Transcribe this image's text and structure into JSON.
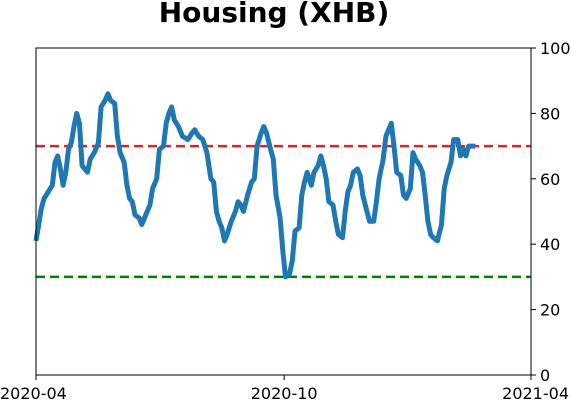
{
  "chart_data": {
    "type": "line",
    "title": "Housing (XHB)",
    "xlabel": "",
    "ylabel": "",
    "x_range": [
      "2020-04-01",
      "2021-04-01"
    ],
    "x_ticks": [
      {
        "date": "2020-04-01",
        "label": "2020-04"
      },
      {
        "date": "2020-10-01",
        "label": "2020-10"
      },
      {
        "date": "2021-04-01",
        "label": "2021-04"
      }
    ],
    "ylim": [
      0,
      100
    ],
    "y_ticks": [
      0,
      20,
      40,
      60,
      80,
      100
    ],
    "y_axis_side": "right",
    "grid": false,
    "legend": "none",
    "reference_lines": [
      {
        "y": 70,
        "color": "#d62728",
        "style": "dashed"
      },
      {
        "y": 30,
        "color": "#008000",
        "style": "dashed"
      }
    ],
    "series": [
      {
        "color": "#1f77b4",
        "points": [
          [
            "2020-04-01",
            41
          ],
          [
            "2020-04-03",
            46
          ],
          [
            "2020-04-05",
            51
          ],
          [
            "2020-04-07",
            54
          ],
          [
            "2020-04-10",
            56
          ],
          [
            "2020-04-13",
            58
          ],
          [
            "2020-04-15",
            65
          ],
          [
            "2020-04-17",
            67
          ],
          [
            "2020-04-19",
            63
          ],
          [
            "2020-04-21",
            58
          ],
          [
            "2020-04-23",
            62
          ],
          [
            "2020-04-25",
            69
          ],
          [
            "2020-04-27",
            71
          ],
          [
            "2020-04-29",
            76
          ],
          [
            "2020-05-01",
            80
          ],
          [
            "2020-05-03",
            77
          ],
          [
            "2020-05-05",
            64
          ],
          [
            "2020-05-07",
            63
          ],
          [
            "2020-05-09",
            62
          ],
          [
            "2020-05-11",
            66
          ],
          [
            "2020-05-14",
            68
          ],
          [
            "2020-05-17",
            71
          ],
          [
            "2020-05-19",
            82
          ],
          [
            "2020-05-22",
            84
          ],
          [
            "2020-05-24",
            86
          ],
          [
            "2020-05-26",
            84
          ],
          [
            "2020-05-29",
            83
          ],
          [
            "2020-05-31",
            73
          ],
          [
            "2020-06-02",
            68
          ],
          [
            "2020-06-05",
            65
          ],
          [
            "2020-06-07",
            58
          ],
          [
            "2020-06-09",
            54
          ],
          [
            "2020-06-11",
            53
          ],
          [
            "2020-06-13",
            49
          ],
          [
            "2020-06-16",
            48
          ],
          [
            "2020-06-18",
            46
          ],
          [
            "2020-06-20",
            48
          ],
          [
            "2020-06-22",
            50
          ],
          [
            "2020-06-24",
            52
          ],
          [
            "2020-06-26",
            57
          ],
          [
            "2020-06-29",
            60
          ],
          [
            "2020-07-01",
            69
          ],
          [
            "2020-07-04",
            70
          ],
          [
            "2020-07-06",
            77
          ],
          [
            "2020-07-08",
            80
          ],
          [
            "2020-07-10",
            82
          ],
          [
            "2020-07-12",
            78
          ],
          [
            "2020-07-15",
            76
          ],
          [
            "2020-07-18",
            73
          ],
          [
            "2020-07-22",
            72
          ],
          [
            "2020-07-25",
            74
          ],
          [
            "2020-07-27",
            75
          ],
          [
            "2020-07-30",
            73
          ],
          [
            "2020-08-02",
            72
          ],
          [
            "2020-08-05",
            68
          ],
          [
            "2020-08-08",
            60
          ],
          [
            "2020-08-10",
            59
          ],
          [
            "2020-08-12",
            50
          ],
          [
            "2020-08-14",
            47
          ],
          [
            "2020-08-16",
            45
          ],
          [
            "2020-08-18",
            41
          ],
          [
            "2020-08-20",
            43
          ],
          [
            "2020-08-23",
            47
          ],
          [
            "2020-08-26",
            50
          ],
          [
            "2020-08-28",
            53
          ],
          [
            "2020-08-30",
            52
          ],
          [
            "2020-09-01",
            50
          ],
          [
            "2020-09-04",
            55
          ],
          [
            "2020-09-07",
            59
          ],
          [
            "2020-09-09",
            60
          ],
          [
            "2020-09-11",
            70
          ],
          [
            "2020-09-14",
            74
          ],
          [
            "2020-09-16",
            76
          ],
          [
            "2020-09-18",
            74
          ],
          [
            "2020-09-21",
            69
          ],
          [
            "2020-09-23",
            66
          ],
          [
            "2020-09-25",
            55
          ],
          [
            "2020-09-28",
            48
          ],
          [
            "2020-09-30",
            38
          ],
          [
            "2020-10-02",
            30
          ],
          [
            "2020-10-05",
            31
          ],
          [
            "2020-10-07",
            35
          ],
          [
            "2020-10-09",
            44
          ],
          [
            "2020-10-12",
            45
          ],
          [
            "2020-10-14",
            55
          ],
          [
            "2020-10-16",
            59
          ],
          [
            "2020-10-18",
            62
          ],
          [
            "2020-10-21",
            58
          ],
          [
            "2020-10-23",
            62
          ],
          [
            "2020-10-26",
            64
          ],
          [
            "2020-10-28",
            67
          ],
          [
            "2020-10-30",
            64
          ],
          [
            "2020-11-01",
            60
          ],
          [
            "2020-11-03",
            53
          ],
          [
            "2020-11-06",
            52
          ],
          [
            "2020-11-08",
            47
          ],
          [
            "2020-11-10",
            43
          ],
          [
            "2020-11-13",
            42
          ],
          [
            "2020-11-15",
            50
          ],
          [
            "2020-11-17",
            56
          ],
          [
            "2020-11-19",
            58
          ],
          [
            "2020-11-21",
            62
          ],
          [
            "2020-11-24",
            63
          ],
          [
            "2020-11-26",
            61
          ],
          [
            "2020-11-28",
            55
          ],
          [
            "2020-12-01",
            50
          ],
          [
            "2020-12-03",
            47
          ],
          [
            "2020-12-06",
            47
          ],
          [
            "2020-12-08",
            53
          ],
          [
            "2020-12-10",
            60
          ],
          [
            "2020-12-13",
            66
          ],
          [
            "2020-12-15",
            73
          ],
          [
            "2020-12-17",
            75
          ],
          [
            "2020-12-19",
            77
          ],
          [
            "2020-12-21",
            70
          ],
          [
            "2020-12-23",
            62
          ],
          [
            "2020-12-26",
            61
          ],
          [
            "2020-12-28",
            55
          ],
          [
            "2020-12-30",
            54
          ],
          [
            "2021-01-02",
            57
          ],
          [
            "2021-01-04",
            68
          ],
          [
            "2021-01-06",
            66
          ],
          [
            "2021-01-09",
            64
          ],
          [
            "2021-01-11",
            62
          ],
          [
            "2021-01-13",
            55
          ],
          [
            "2021-01-15",
            47
          ],
          [
            "2021-01-17",
            43
          ],
          [
            "2021-01-19",
            42
          ],
          [
            "2021-01-22",
            41
          ],
          [
            "2021-01-25",
            46
          ],
          [
            "2021-01-27",
            57
          ],
          [
            "2021-01-29",
            61
          ],
          [
            "2021-02-01",
            65
          ],
          [
            "2021-02-03",
            72
          ],
          [
            "2021-02-06",
            72
          ],
          [
            "2021-02-08",
            67
          ],
          [
            "2021-02-10",
            69
          ],
          [
            "2021-02-12",
            67
          ],
          [
            "2021-02-14",
            70
          ],
          [
            "2021-02-17",
            70
          ],
          [
            "2021-02-19",
            70
          ]
        ]
      }
    ]
  }
}
